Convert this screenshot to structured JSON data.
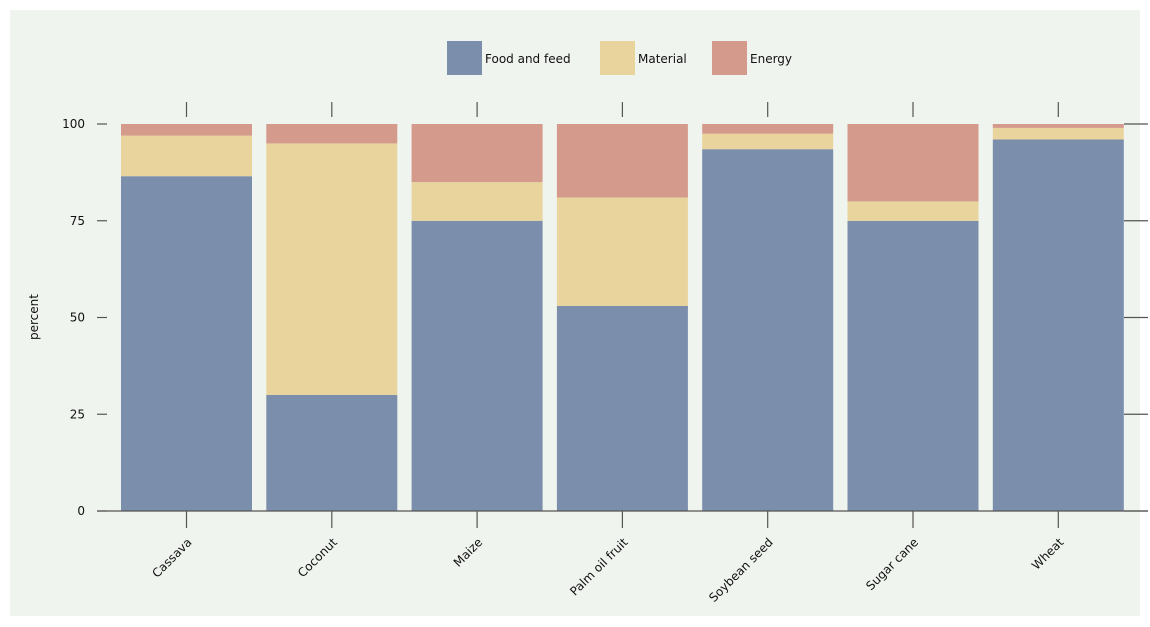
{
  "chart_data": {
    "type": "bar",
    "stacked": true,
    "title": "",
    "xlabel": "",
    "ylabel": "percent",
    "ylim": [
      0,
      100
    ],
    "yticks": [
      0,
      25,
      50,
      75,
      100
    ],
    "grid": false,
    "legend_position": "top-center",
    "categories": [
      "Cassava",
      "Coconut",
      "Maize",
      "Palm oil fruit",
      "Soybean seed",
      "Sugar cane",
      "Wheat"
    ],
    "series": [
      {
        "name": "Food and feed",
        "color": "#7b8eab",
        "values": [
          86.5,
          30,
          75,
          53,
          93.5,
          75,
          96
        ]
      },
      {
        "name": "Material",
        "color": "#e8d49c",
        "values": [
          10.5,
          65,
          10,
          28,
          4,
          5,
          3
        ]
      },
      {
        "name": "Energy",
        "color": "#d49a8b",
        "values": [
          3,
          5,
          15,
          19,
          2.5,
          20,
          1
        ]
      }
    ]
  },
  "colors": {
    "plot_background": "#f0f4ef",
    "axis": "#555555"
  }
}
